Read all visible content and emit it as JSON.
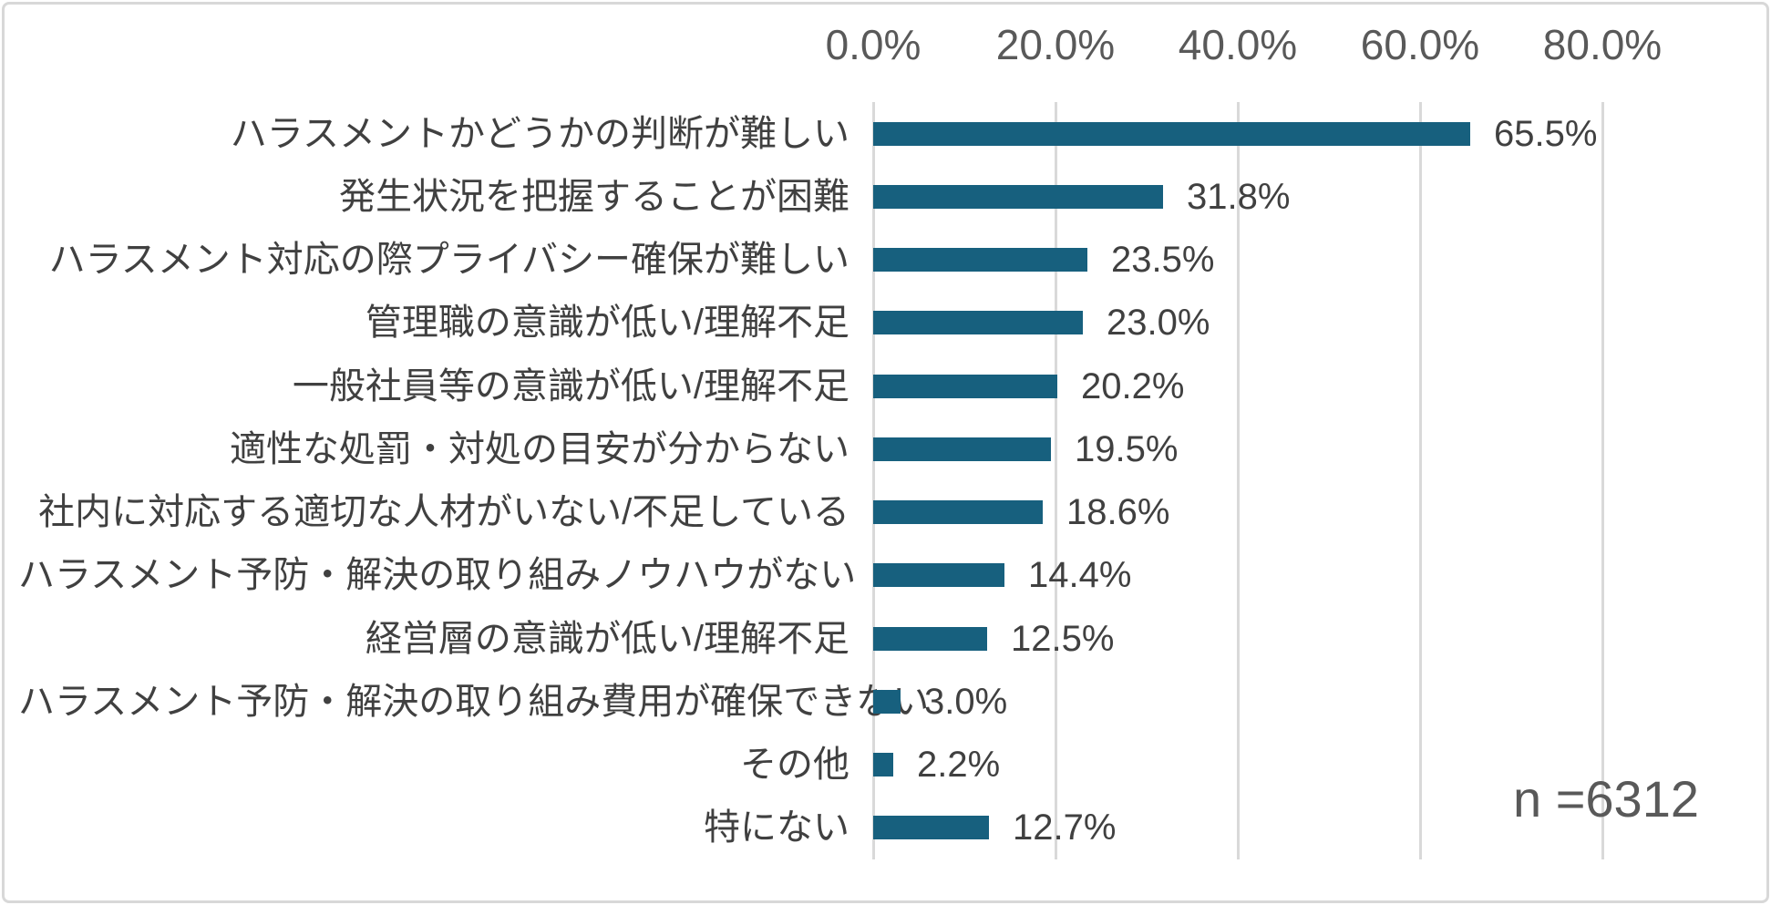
{
  "chart_data": {
    "type": "bar",
    "orientation": "horizontal",
    "title": "",
    "xlabel": "",
    "ylabel": "",
    "categories": [
      "ハラスメントかどうかの判断が難しい",
      "発生状況を把握することが困難",
      "ハラスメント対応の際プライバシー確保が難しい",
      "管理職の意識が低い/理解不足",
      "一般社員等の意識が低い/理解不足",
      "適性な処罰・対処の目安が分からない",
      "社内に対応する適切な人材がいない/不足している",
      "ハラスメント予防・解決の取り組みノウハウがない",
      "経営層の意識が低い/理解不足",
      "ハラスメント予防・解決の取り組み費用が確保できない",
      "その他",
      "特にない"
    ],
    "values": [
      65.5,
      31.8,
      23.5,
      23.0,
      20.2,
      19.5,
      18.6,
      14.4,
      12.5,
      3.0,
      2.2,
      12.7
    ],
    "value_labels": [
      "65.5%",
      "31.8%",
      "23.5%",
      "23.0%",
      "20.2%",
      "19.5%",
      "18.6%",
      "14.4%",
      "12.5%",
      "3.0%",
      "2.2%",
      "12.7%"
    ],
    "x_axis": {
      "position": "top",
      "tick_labels": [
        "0.0%",
        "20.0%",
        "40.0%",
        "60.0%",
        "80.0%"
      ],
      "tick_values": [
        0,
        20,
        40,
        60,
        80
      ],
      "range": [
        0,
        95
      ],
      "grid": true
    },
    "legend": false,
    "annotation": "n =6312",
    "colors": {
      "bar": "#17607e",
      "gridline": "#d9d9d9",
      "category_text": "#404040",
      "value_text": "#404040",
      "axis_text": "#595959",
      "annotation_text": "#595959",
      "border": "#d8d8d8",
      "background": "#ffffff"
    }
  }
}
